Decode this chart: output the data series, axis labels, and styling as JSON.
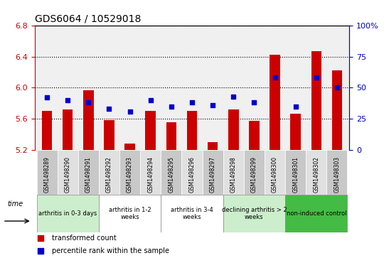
{
  "title": "GDS6064 / 10529018",
  "samples": [
    "GSM1498289",
    "GSM1498290",
    "GSM1498291",
    "GSM1498292",
    "GSM1498293",
    "GSM1498294",
    "GSM1498295",
    "GSM1498296",
    "GSM1498297",
    "GSM1498298",
    "GSM1498299",
    "GSM1498300",
    "GSM1498301",
    "GSM1498302",
    "GSM1498303"
  ],
  "bar_values": [
    5.7,
    5.72,
    5.97,
    5.58,
    5.28,
    5.7,
    5.55,
    5.7,
    5.3,
    5.72,
    5.57,
    6.43,
    5.66,
    6.47,
    6.22
  ],
  "dot_values": [
    42,
    40,
    38,
    33,
    31,
    40,
    35,
    38,
    36,
    43,
    38,
    58,
    35,
    58,
    50
  ],
  "ymin": 5.2,
  "ymax": 6.8,
  "y2min": 0,
  "y2max": 100,
  "yticks": [
    5.2,
    5.6,
    6.0,
    6.4,
    6.8
  ],
  "y2ticks": [
    0,
    25,
    50,
    75,
    100
  ],
  "y2tick_labels": [
    "0",
    "25",
    "50",
    "75",
    "100%"
  ],
  "bar_color": "#cc0000",
  "dot_color": "#0000cc",
  "groups": [
    {
      "label": "arthritis in 0-3 days",
      "start": 0,
      "end": 3,
      "color": "#cceecc"
    },
    {
      "label": "arthritis in 1-2\nweeks",
      "start": 3,
      "end": 6,
      "color": "#ffffff"
    },
    {
      "label": "arthritis in 3-4\nweeks",
      "start": 6,
      "end": 9,
      "color": "#ffffff"
    },
    {
      "label": "declining arthritis > 2\nweeks",
      "start": 9,
      "end": 12,
      "color": "#cceecc"
    },
    {
      "label": "non-induced control",
      "start": 12,
      "end": 15,
      "color": "#44bb44"
    }
  ],
  "legend_bar_label": "transformed count",
  "legend_dot_label": "percentile rank within the sample",
  "bg_color": "#f0f0f0"
}
